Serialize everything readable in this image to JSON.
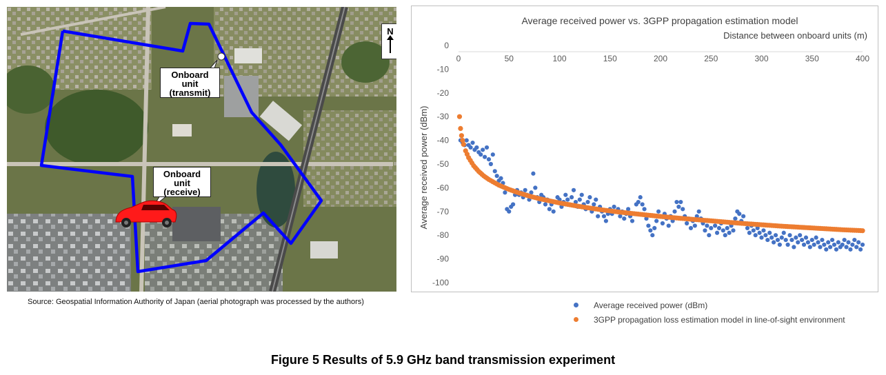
{
  "map": {
    "north_label": "N",
    "transmit_label": [
      "Onboard",
      "unit",
      "(transmit)"
    ],
    "receive_label": [
      "Onboard",
      "unit",
      "(receive)"
    ],
    "route_color": "#0000ff",
    "car_color": "#ff1a1a",
    "source": "Source: Geospatial Information Authority of Japan (aerial photograph was processed by the authors)"
  },
  "chart_data": {
    "type": "scatter",
    "title": "Average received power vs. 3GPP propagation estimation model",
    "xlabel": "Distance between onboard units (m)",
    "ylabel": "Average  received power (dBm)",
    "xlim": [
      0,
      400
    ],
    "ylim": [
      -100,
      0
    ],
    "x_ticks": [
      0,
      50,
      100,
      150,
      200,
      250,
      300,
      350,
      400
    ],
    "y_ticks": [
      0,
      -10,
      -20,
      -30,
      -40,
      -50,
      -60,
      -70,
      -80,
      -90,
      -100
    ],
    "x_axis_position": "top",
    "series": [
      {
        "name": "Average  received  power  (dBm)",
        "color": "#4472c4",
        "points": [
          [
            2,
            -40
          ],
          [
            4,
            -41
          ],
          [
            6,
            -42
          ],
          [
            8,
            -40
          ],
          [
            10,
            -42
          ],
          [
            12,
            -43
          ],
          [
            14,
            -41
          ],
          [
            16,
            -44
          ],
          [
            18,
            -43
          ],
          [
            20,
            -45
          ],
          [
            22,
            -46
          ],
          [
            24,
            -44
          ],
          [
            26,
            -47
          ],
          [
            28,
            -43
          ],
          [
            30,
            -48
          ],
          [
            32,
            -50
          ],
          [
            34,
            -46
          ],
          [
            36,
            -53
          ],
          [
            38,
            -55
          ],
          [
            40,
            -57
          ],
          [
            42,
            -56
          ],
          [
            44,
            -58
          ],
          [
            46,
            -62
          ],
          [
            48,
            -69
          ],
          [
            50,
            -70
          ],
          [
            52,
            -68
          ],
          [
            54,
            -67
          ],
          [
            56,
            -63
          ],
          [
            58,
            -61
          ],
          [
            60,
            -63
          ],
          [
            62,
            -62
          ],
          [
            64,
            -64
          ],
          [
            66,
            -61
          ],
          [
            68,
            -63
          ],
          [
            70,
            -65
          ],
          [
            72,
            -62
          ],
          [
            74,
            -54
          ],
          [
            76,
            -60
          ],
          [
            78,
            -64
          ],
          [
            80,
            -66
          ],
          [
            82,
            -63
          ],
          [
            84,
            -64
          ],
          [
            86,
            -67
          ],
          [
            88,
            -65
          ],
          [
            90,
            -69
          ],
          [
            92,
            -67
          ],
          [
            94,
            -70
          ],
          [
            96,
            -66
          ],
          [
            98,
            -64
          ],
          [
            100,
            -65
          ],
          [
            102,
            -68
          ],
          [
            104,
            -66
          ],
          [
            106,
            -63
          ],
          [
            108,
            -65
          ],
          [
            110,
            -67
          ],
          [
            112,
            -64
          ],
          [
            114,
            -61
          ],
          [
            116,
            -66
          ],
          [
            118,
            -68
          ],
          [
            120,
            -65
          ],
          [
            122,
            -63
          ],
          [
            124,
            -67
          ],
          [
            126,
            -69
          ],
          [
            128,
            -66
          ],
          [
            130,
            -64
          ],
          [
            132,
            -70
          ],
          [
            134,
            -67
          ],
          [
            136,
            -65
          ],
          [
            138,
            -72
          ],
          [
            140,
            -68
          ],
          [
            142,
            -70
          ],
          [
            144,
            -72
          ],
          [
            146,
            -74
          ],
          [
            148,
            -71
          ],
          [
            150,
            -69
          ],
          [
            152,
            -71
          ],
          [
            154,
            -68
          ],
          [
            156,
            -70
          ],
          [
            158,
            -69
          ],
          [
            160,
            -72
          ],
          [
            162,
            -70
          ],
          [
            164,
            -73
          ],
          [
            166,
            -71
          ],
          [
            168,
            -69
          ],
          [
            170,
            -72
          ],
          [
            172,
            -74
          ],
          [
            174,
            -71
          ],
          [
            176,
            -67
          ],
          [
            178,
            -66
          ],
          [
            180,
            -64
          ],
          [
            182,
            -67
          ],
          [
            184,
            -69
          ],
          [
            186,
            -73
          ],
          [
            188,
            -76
          ],
          [
            190,
            -78
          ],
          [
            192,
            -80
          ],
          [
            194,
            -77
          ],
          [
            196,
            -74
          ],
          [
            198,
            -70
          ],
          [
            200,
            -72
          ],
          [
            202,
            -75
          ],
          [
            204,
            -71
          ],
          [
            206,
            -73
          ],
          [
            208,
            -76
          ],
          [
            210,
            -72
          ],
          [
            212,
            -74
          ],
          [
            214,
            -70
          ],
          [
            216,
            -66
          ],
          [
            218,
            -68
          ],
          [
            220,
            -66
          ],
          [
            222,
            -69
          ],
          [
            224,
            -72
          ],
          [
            226,
            -75
          ],
          [
            228,
            -73
          ],
          [
            230,
            -77
          ],
          [
            232,
            -74
          ],
          [
            234,
            -76
          ],
          [
            236,
            -72
          ],
          [
            238,
            -70
          ],
          [
            240,
            -73
          ],
          [
            242,
            -75
          ],
          [
            244,
            -78
          ],
          [
            246,
            -76
          ],
          [
            248,
            -80
          ],
          [
            250,
            -77
          ],
          [
            252,
            -74
          ],
          [
            254,
            -76
          ],
          [
            256,
            -79
          ],
          [
            258,
            -77
          ],
          [
            260,
            -75
          ],
          [
            262,
            -78
          ],
          [
            264,
            -80
          ],
          [
            266,
            -77
          ],
          [
            268,
            -79
          ],
          [
            270,
            -76
          ],
          [
            272,
            -78
          ],
          [
            274,
            -73
          ],
          [
            276,
            -70
          ],
          [
            278,
            -71
          ],
          [
            280,
            -74
          ],
          [
            282,
            -72
          ],
          [
            284,
            -75
          ],
          [
            286,
            -77
          ],
          [
            288,
            -79
          ],
          [
            290,
            -76
          ],
          [
            292,
            -78
          ],
          [
            294,
            -80
          ],
          [
            296,
            -77
          ],
          [
            298,
            -79
          ],
          [
            300,
            -81
          ],
          [
            302,
            -78
          ],
          [
            304,
            -80
          ],
          [
            306,
            -82
          ],
          [
            308,
            -79
          ],
          [
            310,
            -81
          ],
          [
            312,
            -83
          ],
          [
            314,
            -80
          ],
          [
            316,
            -82
          ],
          [
            318,
            -84
          ],
          [
            320,
            -81
          ],
          [
            322,
            -79
          ],
          [
            324,
            -82
          ],
          [
            326,
            -84
          ],
          [
            328,
            -80
          ],
          [
            330,
            -82
          ],
          [
            332,
            -85
          ],
          [
            334,
            -81
          ],
          [
            336,
            -83
          ],
          [
            338,
            -80
          ],
          [
            340,
            -82
          ],
          [
            342,
            -84
          ],
          [
            344,
            -81
          ],
          [
            346,
            -83
          ],
          [
            348,
            -85
          ],
          [
            350,
            -82
          ],
          [
            352,
            -84
          ],
          [
            354,
            -81
          ],
          [
            356,
            -83
          ],
          [
            358,
            -85
          ],
          [
            360,
            -82
          ],
          [
            362,
            -84
          ],
          [
            364,
            -86
          ],
          [
            366,
            -83
          ],
          [
            368,
            -85
          ],
          [
            370,
            -82
          ],
          [
            372,
            -84
          ],
          [
            374,
            -86
          ],
          [
            376,
            -83
          ],
          [
            378,
            -85
          ],
          [
            380,
            -84
          ],
          [
            382,
            -82
          ],
          [
            384,
            -85
          ],
          [
            386,
            -83
          ],
          [
            388,
            -86
          ],
          [
            390,
            -84
          ],
          [
            392,
            -82
          ],
          [
            394,
            -85
          ],
          [
            396,
            -83
          ],
          [
            398,
            -86
          ],
          [
            400,
            -84
          ]
        ]
      },
      {
        "name": "3GPP  propagation  loss  estimation  model  in  line-of-sight  environment",
        "color": "#ed7d31",
        "points": [
          [
            1,
            -30
          ],
          [
            2,
            -35
          ],
          [
            3,
            -38
          ],
          [
            4,
            -40
          ],
          [
            5,
            -41.7
          ],
          [
            7,
            -44.4
          ],
          [
            10,
            -47.3
          ],
          [
            15,
            -50.7
          ],
          [
            20,
            -53.1
          ],
          [
            25,
            -55.0
          ],
          [
            30,
            -56.5
          ],
          [
            40,
            -58.9
          ],
          [
            50,
            -60.7
          ],
          [
            60,
            -62.2
          ],
          [
            70,
            -63.5
          ],
          [
            80,
            -64.6
          ],
          [
            90,
            -65.5
          ],
          [
            100,
            -66.4
          ],
          [
            120,
            -67.9
          ],
          [
            140,
            -69.2
          ],
          [
            160,
            -70.3
          ],
          [
            180,
            -71.2
          ],
          [
            200,
            -72.1
          ],
          [
            220,
            -72.9
          ],
          [
            240,
            -73.6
          ],
          [
            260,
            -74.3
          ],
          [
            280,
            -75.0
          ],
          [
            300,
            -75.6
          ],
          [
            320,
            -76.2
          ],
          [
            340,
            -76.7
          ],
          [
            360,
            -77.2
          ],
          [
            380,
            -77.7
          ],
          [
            400,
            -78.1
          ]
        ]
      }
    ]
  },
  "caption": "Figure 5  Results of 5.9 GHz band transmission experiment"
}
